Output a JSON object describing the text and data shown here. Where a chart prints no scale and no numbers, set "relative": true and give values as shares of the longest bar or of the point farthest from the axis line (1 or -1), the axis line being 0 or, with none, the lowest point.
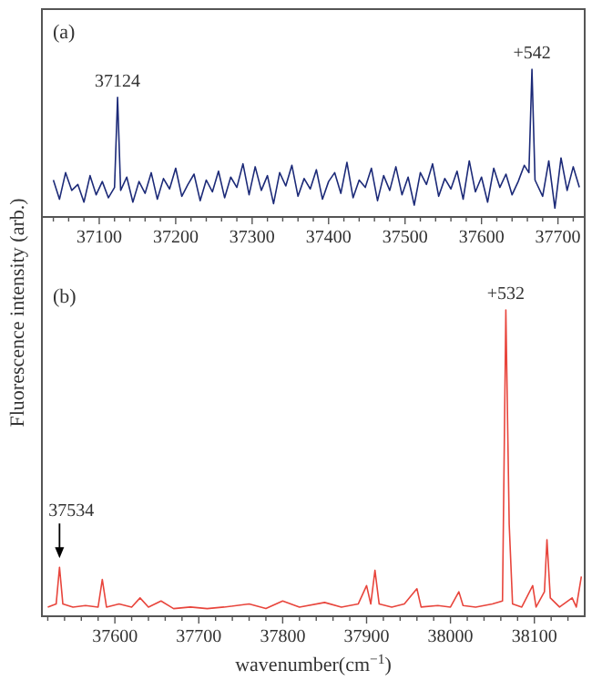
{
  "chart_data": [
    {
      "type": "line",
      "relative": true,
      "ylabel": "Fluorescence intensity (arb.)",
      "xlim": [
        37025,
        37735
      ],
      "xticks": [
        {
          "value": 37040,
          "label": null
        },
        {
          "value": 37060,
          "label": null
        },
        {
          "value": 37080,
          "label": null
        },
        37100,
        {
          "value": 37120,
          "label": null
        },
        {
          "value": 37140,
          "label": null
        },
        {
          "value": 37160,
          "label": null
        },
        {
          "value": 37180,
          "label": null
        },
        37200,
        {
          "value": 37220,
          "label": null
        },
        {
          "value": 37240,
          "label": null
        },
        {
          "value": 37260,
          "label": null
        },
        {
          "value": 37280,
          "label": null
        },
        37300,
        {
          "value": 37320,
          "label": null
        },
        {
          "value": 37340,
          "label": null
        },
        {
          "value": 37360,
          "label": null
        },
        {
          "value": 37380,
          "label": null
        },
        37400,
        {
          "value": 37420,
          "label": null
        },
        {
          "value": 37440,
          "label": null
        },
        {
          "value": 37460,
          "label": null
        },
        {
          "value": 37480,
          "label": null
        },
        37500,
        {
          "value": 37520,
          "label": null
        },
        {
          "value": 37540,
          "label": null
        },
        {
          "value": 37560,
          "label": null
        },
        {
          "value": 37580,
          "label": null
        },
        37600,
        {
          "value": 37620,
          "label": null
        },
        {
          "value": 37640,
          "label": null
        },
        {
          "value": 37660,
          "label": null
        },
        {
          "value": 37680,
          "label": null
        },
        37700,
        {
          "value": 37720,
          "label": null
        }
      ],
      "annotations": [
        "(a)",
        {
          "text": "37124",
          "x": 37124,
          "y": 0.81
        },
        {
          "text": "+542",
          "x": 37666,
          "y": 1
        }
      ],
      "series": [
        {
          "color": "#1c2a78",
          "x": [
            37040,
            37048,
            37056,
            37064,
            37072,
            37080,
            37088,
            37096,
            37104,
            37112,
            37120,
            37124,
            37128,
            37136,
            37144,
            37152,
            37160,
            37168,
            37176,
            37184,
            37192,
            37200,
            37208,
            37216,
            37224,
            37232,
            37240,
            37248,
            37256,
            37264,
            37272,
            37280,
            37288,
            37296,
            37304,
            37312,
            37320,
            37328,
            37336,
            37344,
            37352,
            37360,
            37368,
            37376,
            37384,
            37392,
            37400,
            37408,
            37416,
            37424,
            37432,
            37440,
            37448,
            37456,
            37464,
            37472,
            37480,
            37488,
            37496,
            37504,
            37512,
            37520,
            37528,
            37536,
            37544,
            37552,
            37560,
            37568,
            37576,
            37584,
            37592,
            37600,
            37608,
            37616,
            37624,
            37632,
            37640,
            37648,
            37656,
            37662,
            37666,
            37670,
            37680,
            37688,
            37696,
            37704,
            37712,
            37720,
            37728
          ],
          "values": [
            0.25,
            0.12,
            0.3,
            0.18,
            0.22,
            0.1,
            0.28,
            0.15,
            0.24,
            0.13,
            0.2,
            0.81,
            0.18,
            0.27,
            0.1,
            0.24,
            0.16,
            0.3,
            0.12,
            0.26,
            0.19,
            0.33,
            0.14,
            0.22,
            0.29,
            0.11,
            0.25,
            0.17,
            0.31,
            0.13,
            0.27,
            0.2,
            0.36,
            0.15,
            0.34,
            0.18,
            0.28,
            0.09,
            0.3,
            0.21,
            0.35,
            0.14,
            0.26,
            0.19,
            0.32,
            0.12,
            0.24,
            0.3,
            0.16,
            0.37,
            0.13,
            0.25,
            0.2,
            0.33,
            0.11,
            0.28,
            0.18,
            0.34,
            0.15,
            0.27,
            0.08,
            0.3,
            0.22,
            0.36,
            0.14,
            0.26,
            0.19,
            0.31,
            0.12,
            0.38,
            0.17,
            0.27,
            0.1,
            0.33,
            0.2,
            0.29,
            0.15,
            0.24,
            0.35,
            0.3,
            1,
            0.25,
            0.14,
            0.38,
            0.06,
            0.4,
            0.18,
            0.34,
            0.2
          ]
        }
      ]
    },
    {
      "type": "line",
      "relative": true,
      "xlabel": "wavenumber(cm$^{−1}$)",
      "xlim": [
        37513,
        38160
      ],
      "xticks": [
        {
          "value": 37520,
          "label": null
        },
        {
          "value": 37540,
          "label": null
        },
        {
          "value": 37560,
          "label": null
        },
        {
          "value": 37580,
          "label": null
        },
        37600,
        {
          "value": 37620,
          "label": null
        },
        {
          "value": 37640,
          "label": null
        },
        {
          "value": 37660,
          "label": null
        },
        {
          "value": 37680,
          "label": null
        },
        37700,
        {
          "value": 37720,
          "label": null
        },
        {
          "value": 37740,
          "label": null
        },
        {
          "value": 37760,
          "label": null
        },
        {
          "value": 37780,
          "label": null
        },
        37800,
        {
          "value": 37820,
          "label": null
        },
        {
          "value": 37840,
          "label": null
        },
        {
          "value": 37860,
          "label": null
        },
        {
          "value": 37880,
          "label": null
        },
        37900,
        {
          "value": 37920,
          "label": null
        },
        {
          "value": 37940,
          "label": null
        },
        {
          "value": 37960,
          "label": null
        },
        {
          "value": 37980,
          "label": null
        },
        38000,
        {
          "value": 38020,
          "label": null
        },
        {
          "value": 38040,
          "label": null
        },
        {
          "value": 38060,
          "label": null
        },
        {
          "value": 38080,
          "label": null
        },
        38100,
        {
          "value": 38120,
          "label": null
        },
        {
          "value": 38140,
          "label": null
        }
      ],
      "annotations": [
        "(b)",
        {
          "text": "+532",
          "x": 38066,
          "y": 1
        },
        {
          "text": "37534",
          "x": 37534,
          "y": 0.16
        }
      ],
      "series": [
        {
          "color": "#e8453c",
          "x": [
            37520,
            37530,
            37534,
            37538,
            37550,
            37565,
            37580,
            37585,
            37590,
            37605,
            37620,
            37630,
            37640,
            37655,
            37670,
            37690,
            37710,
            37730,
            37760,
            37780,
            37800,
            37820,
            37850,
            37870,
            37890,
            37900,
            37905,
            37910,
            37915,
            37930,
            37945,
            37960,
            37965,
            37985,
            38000,
            38010,
            38015,
            38030,
            38050,
            38062,
            38066,
            38070,
            38074,
            38085,
            38098,
            38102,
            38112,
            38115,
            38119,
            38130,
            38145,
            38150,
            38156
          ],
          "values": [
            0.03,
            0.04,
            0.16,
            0.04,
            0.03,
            0.035,
            0.03,
            0.12,
            0.03,
            0.04,
            0.03,
            0.06,
            0.03,
            0.05,
            0.025,
            0.03,
            0.025,
            0.03,
            0.04,
            0.025,
            0.05,
            0.03,
            0.045,
            0.03,
            0.04,
            0.1,
            0.04,
            0.15,
            0.04,
            0.03,
            0.04,
            0.09,
            0.03,
            0.035,
            0.03,
            0.08,
            0.035,
            0.03,
            0.04,
            0.05,
            1,
            0.3,
            0.04,
            0.03,
            0.1,
            0.03,
            0.08,
            0.25,
            0.06,
            0.03,
            0.06,
            0.03,
            0.13
          ]
        }
      ]
    }
  ]
}
